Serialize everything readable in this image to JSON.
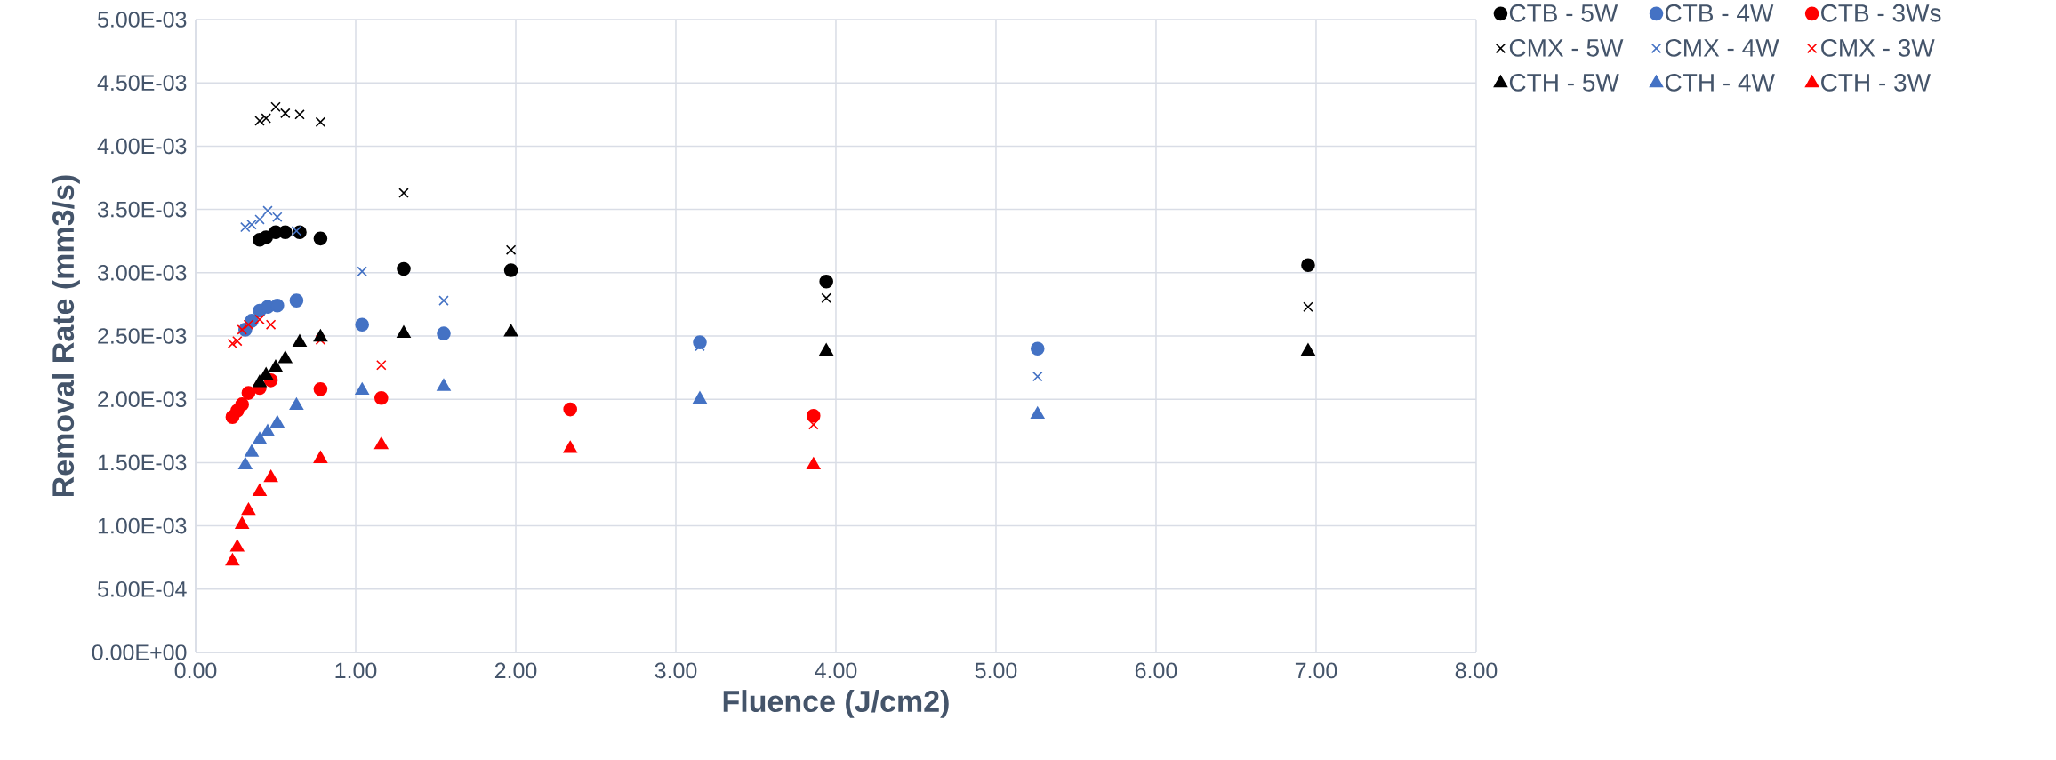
{
  "chart_data": {
    "type": "scatter",
    "xlabel": "Fluence (J/cm2)",
    "ylabel": "Removal Rate (mm3/s)",
    "xlim": [
      0,
      8
    ],
    "ylim": [
      0,
      0.005
    ],
    "xticks": [
      {
        "value": 0,
        "label": "0.00"
      },
      {
        "value": 1,
        "label": "1.00"
      },
      {
        "value": 2,
        "label": "2.00"
      },
      {
        "value": 3,
        "label": "3.00"
      },
      {
        "value": 4,
        "label": "4.00"
      },
      {
        "value": 5,
        "label": "5.00"
      },
      {
        "value": 6,
        "label": "6.00"
      },
      {
        "value": 7,
        "label": "7.00"
      },
      {
        "value": 8,
        "label": "8.00"
      }
    ],
    "yticks": [
      {
        "value": 0,
        "label": "0.00E+00"
      },
      {
        "value": 0.0005,
        "label": "5.00E-04"
      },
      {
        "value": 0.001,
        "label": "1.00E-03"
      },
      {
        "value": 0.0015,
        "label": "1.50E-03"
      },
      {
        "value": 0.002,
        "label": "2.00E-03"
      },
      {
        "value": 0.0025,
        "label": "2.50E-03"
      },
      {
        "value": 0.003,
        "label": "3.00E-03"
      },
      {
        "value": 0.0035,
        "label": "3.50E-03"
      },
      {
        "value": 0.004,
        "label": "4.00E-03"
      },
      {
        "value": 0.0045,
        "label": "4.50E-03"
      },
      {
        "value": 0.005,
        "label": "5.00E-03"
      }
    ],
    "grid": true,
    "legend": "top right",
    "series": [
      {
        "name": "CTB - 5W",
        "color": "#000000",
        "marker": "circle",
        "x": [
          0.4,
          0.44,
          0.5,
          0.56,
          0.65,
          0.78,
          1.3,
          1.97,
          3.94,
          6.95
        ],
        "values": [
          0.00326,
          0.00328,
          0.00332,
          0.00332,
          0.00332,
          0.00327,
          0.00303,
          0.00302,
          0.00293,
          0.00306
        ]
      },
      {
        "name": "CTB - 4W",
        "color": "#4472c4",
        "marker": "circle",
        "x": [
          0.31,
          0.35,
          0.4,
          0.45,
          0.51,
          0.63,
          1.04,
          1.55,
          3.15,
          5.26
        ],
        "values": [
          0.00255,
          0.00262,
          0.0027,
          0.00273,
          0.00274,
          0.00278,
          0.00259,
          0.00252,
          0.00245,
          0.0024
        ]
      },
      {
        "name": "CTB - 3Ws",
        "color": "#ff0000",
        "marker": "circle",
        "x": [
          0.23,
          0.26,
          0.29,
          0.33,
          0.4,
          0.47,
          0.78,
          1.16,
          2.34,
          3.86
        ],
        "values": [
          0.00186,
          0.00191,
          0.00196,
          0.00205,
          0.00209,
          0.00215,
          0.00208,
          0.00201,
          0.00192,
          0.00187
        ]
      },
      {
        "name": "CMX - 5W",
        "color": "#000000",
        "marker": "cross",
        "x": [
          0.4,
          0.44,
          0.5,
          0.56,
          0.65,
          0.78,
          1.3,
          1.97,
          3.94,
          6.95
        ],
        "values": [
          0.0042,
          0.00422,
          0.00431,
          0.00426,
          0.00425,
          0.00419,
          0.00363,
          0.00318,
          0.0028,
          0.00273
        ]
      },
      {
        "name": "CMX - 4W",
        "color": "#4472c4",
        "marker": "cross",
        "x": [
          0.31,
          0.35,
          0.4,
          0.45,
          0.51,
          0.63,
          1.04,
          1.55,
          3.15,
          5.26
        ],
        "values": [
          0.00336,
          0.00338,
          0.00342,
          0.00349,
          0.00344,
          0.00333,
          0.00301,
          0.00278,
          0.00242,
          0.00218
        ]
      },
      {
        "name": "CMX - 3W",
        "color": "#ff0000",
        "marker": "cross",
        "x": [
          0.23,
          0.26,
          0.29,
          0.33,
          0.4,
          0.47,
          0.78,
          1.16,
          2.34,
          3.86
        ],
        "values": [
          0.00244,
          0.00246,
          0.00255,
          0.00259,
          0.00263,
          0.00259,
          0.00247,
          0.00227,
          0.00193,
          0.0018
        ]
      },
      {
        "name": "CTH - 5W",
        "color": "#000000",
        "marker": "triangle",
        "x": [
          0.4,
          0.44,
          0.5,
          0.56,
          0.65,
          0.78,
          1.3,
          1.97,
          3.94,
          6.95
        ],
        "values": [
          0.00213,
          0.00219,
          0.00225,
          0.00232,
          0.00245,
          0.00249,
          0.00252,
          0.00253,
          0.00238,
          0.00238
        ]
      },
      {
        "name": "CTH - 4W",
        "color": "#4472c4",
        "marker": "triangle",
        "x": [
          0.31,
          0.35,
          0.4,
          0.45,
          0.51,
          0.63,
          1.04,
          1.55,
          3.15,
          5.26
        ],
        "values": [
          0.00148,
          0.00158,
          0.00168,
          0.00174,
          0.00181,
          0.00195,
          0.00207,
          0.0021,
          0.002,
          0.00188
        ]
      },
      {
        "name": "CTH - 3W",
        "color": "#ff0000",
        "marker": "triangle",
        "x": [
          0.23,
          0.26,
          0.29,
          0.33,
          0.4,
          0.47,
          0.78,
          1.16,
          2.34,
          3.86
        ],
        "values": [
          0.00072,
          0.00083,
          0.00101,
          0.00112,
          0.00127,
          0.00138,
          0.00153,
          0.00164,
          0.00161,
          0.00148
        ]
      }
    ]
  }
}
